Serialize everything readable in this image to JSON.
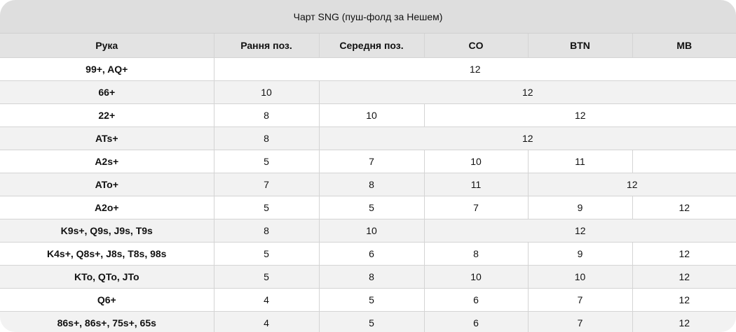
{
  "title": "Чарт SNG (пуш-фолд за Нешем)",
  "columns": [
    "Рука",
    "Рання поз.",
    "Середня поз.",
    "CO",
    "BTN",
    "MB"
  ],
  "rows": [
    {
      "hand": "99+, AQ+",
      "cells": [
        {
          "v": "12",
          "span": 5
        }
      ]
    },
    {
      "hand": "66+",
      "cells": [
        {
          "v": "10",
          "span": 1
        },
        {
          "v": "12",
          "span": 4
        }
      ]
    },
    {
      "hand": "22+",
      "cells": [
        {
          "v": "8",
          "span": 1
        },
        {
          "v": "10",
          "span": 1
        },
        {
          "v": "12",
          "span": 3
        }
      ]
    },
    {
      "hand": "ATs+",
      "cells": [
        {
          "v": "8",
          "span": 1
        },
        {
          "v": "12",
          "span": 4
        }
      ]
    },
    {
      "hand": "A2s+",
      "cells": [
        {
          "v": "5",
          "span": 1
        },
        {
          "v": "7",
          "span": 1
        },
        {
          "v": "10",
          "span": 1
        },
        {
          "v": "11",
          "span": 1
        },
        {
          "v": "",
          "span": 1
        }
      ]
    },
    {
      "hand": "ATo+",
      "cells": [
        {
          "v": "7",
          "span": 1
        },
        {
          "v": "8",
          "span": 1
        },
        {
          "v": "11",
          "span": 1
        },
        {
          "v": "12",
          "span": 2
        }
      ]
    },
    {
      "hand": "A2o+",
      "cells": [
        {
          "v": "5",
          "span": 1
        },
        {
          "v": "5",
          "span": 1
        },
        {
          "v": "7",
          "span": 1
        },
        {
          "v": "9",
          "span": 1
        },
        {
          "v": "12",
          "span": 1
        }
      ]
    },
    {
      "hand": "K9s+, Q9s, J9s, T9s",
      "cells": [
        {
          "v": "8",
          "span": 1
        },
        {
          "v": "10",
          "span": 1
        },
        {
          "v": "12",
          "span": 3
        }
      ]
    },
    {
      "hand": "K4s+, Q8s+, J8s, T8s, 98s",
      "cells": [
        {
          "v": "5",
          "span": 1
        },
        {
          "v": "6",
          "span": 1
        },
        {
          "v": "8",
          "span": 1
        },
        {
          "v": "9",
          "span": 1
        },
        {
          "v": "12",
          "span": 1
        }
      ]
    },
    {
      "hand": "KTo, QTo, JTo",
      "cells": [
        {
          "v": "5",
          "span": 1
        },
        {
          "v": "8",
          "span": 1
        },
        {
          "v": "10",
          "span": 1
        },
        {
          "v": "10",
          "span": 1
        },
        {
          "v": "12",
          "span": 1
        }
      ]
    },
    {
      "hand": "Q6+",
      "cells": [
        {
          "v": "4",
          "span": 1
        },
        {
          "v": "5",
          "span": 1
        },
        {
          "v": "6",
          "span": 1
        },
        {
          "v": "7",
          "span": 1
        },
        {
          "v": "12",
          "span": 1
        }
      ]
    },
    {
      "hand": "86s+, 86s+, 75s+, 65s",
      "cells": [
        {
          "v": "4",
          "span": 1
        },
        {
          "v": "5",
          "span": 1
        },
        {
          "v": "6",
          "span": 1
        },
        {
          "v": "7",
          "span": 1
        },
        {
          "v": "12",
          "span": 1
        }
      ]
    }
  ]
}
